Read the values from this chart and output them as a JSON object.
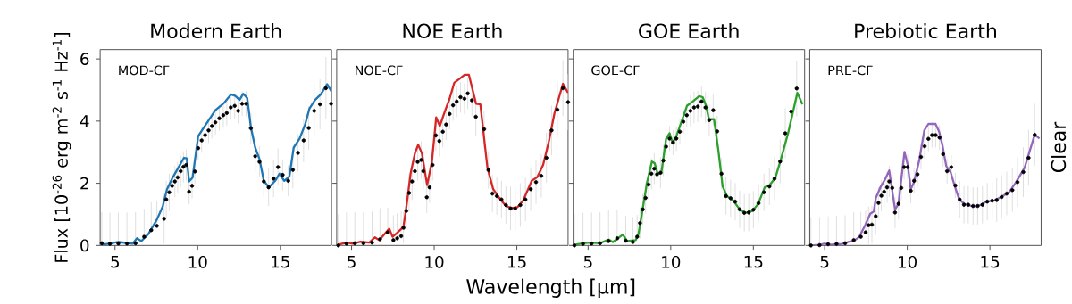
{
  "chart_data": [
    {
      "type": "line",
      "title": "Modern Earth",
      "ylabel": "Flux [10$^{-26}$ erg m$^{-2}$ s$^{-1}$ Hz$^{-1}$]",
      "annotations": [
        "MOD-CF"
      ],
      "xlim": [
        4.1,
        18.1
      ],
      "ylim": [
        0,
        6.3
      ],
      "xticks": [
        5,
        10,
        15
      ],
      "yticks": [
        0,
        2,
        4,
        6
      ],
      "series": [
        {
          "type": "scatter",
          "color": "#000000",
          "x": [
            4.2,
            4.69,
            5.2,
            5.72,
            6.24,
            6.76,
            7.19,
            7.53,
            7.97,
            8.1,
            8.28,
            8.45,
            8.62,
            8.79,
            8.97,
            9.14,
            9.31,
            9.48,
            9.66,
            9.83,
            10.03,
            10.24,
            10.45,
            10.66,
            10.86,
            11.07,
            11.31,
            11.55,
            11.76,
            12.0,
            12.24,
            12.45,
            12.69,
            12.93,
            13.22,
            13.48,
            13.74,
            14.0,
            14.29,
            14.59,
            14.86,
            15.14,
            15.48,
            15.76,
            16.07,
            16.41,
            16.72,
            17.05,
            17.4,
            17.76,
            18.07
          ],
          "values": [
            0.07,
            0.05,
            0.06,
            0.06,
            0.07,
            0.28,
            0.49,
            0.63,
            0.86,
            1.48,
            1.71,
            1.92,
            2.06,
            2.19,
            2.39,
            2.53,
            2.59,
            1.73,
            1.92,
            2.38,
            3.13,
            3.38,
            3.55,
            3.7,
            3.84,
            3.96,
            4.09,
            4.19,
            4.26,
            4.44,
            4.49,
            4.33,
            4.56,
            4.56,
            3.77,
            2.87,
            2.69,
            2.06,
            1.87,
            2.15,
            2.52,
            2.27,
            2.08,
            2.43,
            2.98,
            3.38,
            3.78,
            4.33,
            4.54,
            5.06,
            4.56
          ],
          "errors": [
            [
              0.07,
              1.07
            ],
            [
              0.05,
              1.05
            ],
            [
              0.06,
              1.06
            ],
            [
              0.06,
              1.06
            ],
            [
              0.07,
              1.07
            ],
            [
              0.28,
              1.18
            ],
            [
              0.49,
              1.39
            ],
            [
              0.63,
              1.43
            ],
            0.8,
            0.6,
            0.6,
            0.5,
            0.5,
            0.5,
            0.5,
            0.5,
            0.5,
            0.4,
            0.4,
            0.4,
            0.4,
            0.4,
            0.4,
            0.4,
            0.4,
            0.4,
            0.4,
            0.4,
            0.4,
            0.4,
            0.4,
            0.4,
            0.4,
            0.4,
            0.5,
            0.5,
            0.5,
            0.5,
            0.6,
            0.6,
            0.6,
            0.5,
            0.5,
            0.6,
            0.6,
            0.7,
            0.7,
            0.8,
            0.8,
            1.0,
            1.0
          ]
        },
        {
          "color": "#1f77b4",
          "x": [
            4.17,
            4.69,
            5.2,
            6.07,
            6.33,
            6.59,
            7.02,
            7.53,
            7.88,
            8.14,
            8.48,
            8.83,
            9.17,
            9.34,
            9.48,
            9.69,
            10.03,
            10.38,
            10.72,
            11.07,
            11.59,
            12.02,
            12.28,
            12.53,
            12.76,
            13.0,
            13.22,
            13.48,
            13.74,
            14.0,
            14.31,
            14.69,
            14.95,
            15.24,
            15.55,
            15.81,
            16.16,
            16.5,
            16.76,
            17.1,
            17.45,
            17.83,
            18.1
          ],
          "values": [
            0.02,
            0.06,
            0.11,
            0.06,
            0.23,
            0.14,
            0.37,
            0.83,
            1.25,
            1.8,
            2.18,
            2.5,
            2.82,
            2.8,
            2.06,
            2.18,
            3.52,
            3.8,
            4.07,
            4.35,
            4.58,
            4.86,
            4.81,
            4.68,
            4.88,
            4.74,
            3.8,
            3.15,
            2.78,
            2.08,
            1.87,
            2.08,
            2.31,
            2.08,
            2.22,
            3.15,
            3.43,
            3.89,
            4.4,
            4.68,
            4.86,
            5.19,
            4.95
          ]
        }
      ]
    },
    {
      "type": "line",
      "title": "NOE Earth",
      "xlabel": "Wavelength [μm]",
      "annotations": [
        "NOE-CF"
      ],
      "tick_labels": "x",
      "xlim": [
        4.1,
        18.1
      ],
      "ylim": [
        0,
        6.3
      ],
      "xticks": [
        5,
        10,
        15
      ],
      "yticks": [
        0,
        2,
        4,
        6
      ],
      "series": [
        {
          "type": "scatter",
          "color": "#000000",
          "x": [
            4.2,
            4.69,
            5.2,
            5.72,
            6.24,
            6.72,
            7.19,
            7.53,
            7.76,
            8.0,
            8.14,
            8.31,
            8.48,
            8.66,
            8.83,
            9.0,
            9.21,
            9.34,
            9.55,
            9.72,
            9.9,
            10.1,
            10.31,
            10.52,
            10.72,
            10.93,
            11.14,
            11.36,
            11.59,
            11.83,
            12.03,
            12.28,
            12.52,
            13.02,
            13.28,
            13.52,
            13.79,
            14.07,
            14.34,
            14.62,
            14.9,
            15.21,
            15.52,
            15.84,
            16.16,
            16.48,
            16.79,
            17.1,
            17.45,
            17.79,
            18.1
          ],
          "values": [
            0.0,
            0.06,
            0.07,
            0.07,
            0.09,
            0.2,
            0.42,
            0.17,
            0.23,
            0.3,
            0.57,
            1.11,
            1.69,
            2.06,
            2.39,
            2.69,
            2.75,
            2.39,
            1.55,
            1.87,
            2.59,
            3.54,
            3.36,
            3.66,
            3.89,
            4.23,
            4.51,
            4.63,
            4.77,
            4.72,
            4.89,
            4.67,
            4.14,
            3.74,
            2.43,
            1.67,
            1.59,
            1.48,
            1.3,
            1.19,
            1.19,
            1.3,
            1.48,
            1.81,
            2.04,
            2.24,
            2.82,
            3.7,
            4.37,
            5.06,
            4.61
          ],
          "errors": [
            [
              0.0,
              1.0
            ],
            [
              0.06,
              1.06
            ],
            [
              0.07,
              1.07
            ],
            [
              0.07,
              1.07
            ],
            [
              0.09,
              1.09
            ],
            [
              0.2,
              1.2
            ],
            [
              0.42,
              1.22
            ],
            [
              0.17,
              0.97
            ],
            [
              0.23,
              1.03
            ],
            [
              0.3,
              1.1
            ],
            0.5,
            0.6,
            0.6,
            0.6,
            0.6,
            0.6,
            0.6,
            0.6,
            0.5,
            0.5,
            0.5,
            0.5,
            0.5,
            0.5,
            0.5,
            0.5,
            0.5,
            0.5,
            0.5,
            0.5,
            0.5,
            0.5,
            0.6,
            0.6,
            0.6,
            0.6,
            0.6,
            0.6,
            0.6,
            0.7,
            0.7,
            0.7,
            0.7,
            0.7,
            0.7,
            0.7,
            0.8,
            0.8,
            0.9,
            0.9,
            0.9
          ]
        },
        {
          "color": "#d62728",
          "x": [
            4.17,
            4.69,
            5.12,
            5.55,
            6.07,
            6.41,
            6.67,
            7.28,
            7.48,
            7.79,
            8.14,
            8.34,
            8.57,
            8.83,
            9.03,
            9.26,
            9.57,
            9.86,
            10.12,
            10.34,
            10.64,
            10.93,
            11.21,
            11.5,
            11.84,
            12.1,
            12.53,
            12.79,
            13.22,
            13.57,
            14.0,
            14.34,
            14.69,
            15.03,
            15.38,
            15.9,
            16.24,
            16.59,
            16.93,
            17.28,
            17.79,
            18.1
          ],
          "values": [
            0.02,
            0.09,
            0.06,
            0.12,
            0.09,
            0.26,
            0.17,
            0.54,
            0.28,
            0.42,
            0.6,
            1.34,
            2.31,
            2.96,
            3.24,
            2.96,
            1.94,
            2.69,
            4.12,
            3.84,
            4.31,
            4.72,
            5.23,
            5.35,
            5.49,
            5.49,
            4.56,
            4.54,
            2.5,
            1.81,
            1.48,
            1.27,
            1.2,
            1.23,
            1.44,
            2.08,
            2.2,
            2.59,
            3.33,
            4.26,
            5.2,
            4.91
          ]
        }
      ]
    },
    {
      "type": "line",
      "title": "GOE Earth",
      "annotations": [
        "GOE-CF"
      ],
      "tick_labels": "x",
      "xlim": [
        4.1,
        18.1
      ],
      "ylim": [
        0,
        6.3
      ],
      "xticks": [
        5,
        10,
        15
      ],
      "yticks": [
        0,
        2,
        4,
        6
      ],
      "series": [
        {
          "type": "scatter",
          "color": "#000000",
          "x": [
            4.17,
            4.69,
            5.21,
            5.72,
            6.24,
            6.76,
            7.28,
            7.71,
            7.97,
            8.14,
            8.31,
            8.48,
            8.66,
            8.83,
            9.0,
            9.17,
            9.38,
            9.55,
            9.72,
            9.93,
            10.14,
            10.34,
            10.55,
            10.76,
            10.97,
            11.19,
            11.41,
            11.64,
            11.86,
            12.1,
            12.33,
            12.57,
            12.81,
            13.07,
            13.34,
            13.62,
            13.9,
            14.17,
            14.45,
            14.72,
            15.0,
            15.31,
            15.64,
            15.97,
            16.28,
            16.62,
            16.93,
            17.28,
            17.62
          ],
          "values": [
            0.0,
            0.05,
            0.06,
            0.07,
            0.14,
            0.23,
            0.15,
            0.11,
            0.28,
            0.72,
            1.16,
            1.53,
            1.96,
            2.31,
            2.47,
            2.29,
            2.34,
            2.73,
            3.18,
            3.44,
            3.31,
            3.44,
            3.66,
            3.98,
            4.19,
            4.33,
            4.44,
            4.47,
            4.63,
            4.44,
            4.03,
            4.35,
            3.67,
            2.31,
            1.59,
            1.52,
            1.41,
            1.16,
            1.05,
            1.06,
            1.15,
            1.36,
            1.71,
            1.9,
            2.15,
            2.7,
            3.61,
            4.31,
            5.05
          ],
          "errors": [
            [
              0.0,
              1.0
            ],
            [
              0.05,
              1.05
            ],
            [
              0.06,
              1.06
            ],
            [
              0.07,
              1.07
            ],
            [
              0.14,
              1.14
            ],
            [
              0.23,
              1.13
            ],
            [
              0.15,
              0.95
            ],
            [
              0.11,
              0.91
            ],
            [
              0.28,
              0.98
            ],
            0.5,
            0.5,
            0.5,
            0.5,
            0.5,
            0.5,
            0.5,
            0.5,
            0.5,
            0.4,
            0.4,
            0.4,
            0.4,
            0.4,
            0.4,
            0.4,
            0.5,
            0.5,
            0.5,
            0.5,
            0.5,
            0.5,
            0.5,
            0.5,
            0.5,
            0.6,
            0.6,
            0.6,
            0.6,
            0.6,
            0.6,
            0.6,
            0.6,
            0.6,
            0.6,
            0.7,
            0.7,
            0.8,
            0.8,
            0.9
          ]
        },
        {
          "color": "#2ca02c",
          "x": [
            4.17,
            4.69,
            5.12,
            5.72,
            6.24,
            6.5,
            7.1,
            7.36,
            7.88,
            8.05,
            8.31,
            8.57,
            8.86,
            9.03,
            9.21,
            9.43,
            9.72,
            9.93,
            10.12,
            10.34,
            10.59,
            10.98,
            11.33,
            11.72,
            11.93,
            12.14,
            12.31,
            12.62,
            12.88,
            13.14,
            13.4,
            13.79,
            14.17,
            14.52,
            14.95,
            15.29,
            15.69,
            15.98,
            16.33,
            16.67,
            17.1,
            17.66,
            17.97
          ],
          "values": [
            0.02,
            0.07,
            0.09,
            0.07,
            0.19,
            0.11,
            0.35,
            0.14,
            0.17,
            0.37,
            1.2,
            2.04,
            2.7,
            2.64,
            2.31,
            2.33,
            3.43,
            3.61,
            3.29,
            3.52,
            3.89,
            4.49,
            4.63,
            4.8,
            4.77,
            4.49,
            4.06,
            4.06,
            3.06,
            1.9,
            1.59,
            1.44,
            1.16,
            1.05,
            1.11,
            1.34,
            1.87,
            1.94,
            2.18,
            2.78,
            3.61,
            4.91,
            4.54
          ]
        }
      ]
    },
    {
      "type": "line",
      "title": "Prebiotic Earth",
      "annotations": [
        "PRE-CF"
      ],
      "y2label": "Clear",
      "tick_labels": "x",
      "xlim": [
        4.1,
        18.1
      ],
      "ylim": [
        0,
        6.3
      ],
      "xticks": [
        5,
        10,
        15
      ],
      "yticks": [
        0,
        2,
        4,
        6
      ],
      "series": [
        {
          "type": "scatter",
          "color": "#000000",
          "x": [
            4.17,
            4.69,
            5.21,
            5.72,
            6.24,
            6.76,
            7.19,
            7.48,
            7.66,
            7.86,
            8.09,
            8.26,
            8.43,
            8.6,
            8.78,
            8.91,
            9.09,
            9.26,
            9.47,
            9.64,
            9.81,
            10.02,
            10.21,
            10.41,
            10.62,
            10.83,
            11.05,
            11.28,
            11.5,
            11.72,
            11.95,
            12.17,
            12.41,
            12.66,
            12.91,
            13.17,
            13.43,
            13.69,
            13.98,
            14.26,
            14.55,
            14.84,
            15.14,
            15.41,
            15.71,
            16.02,
            16.36,
            16.67,
            17.02,
            17.34,
            17.71
          ],
          "values": [
            0.0,
            0.01,
            0.04,
            0.05,
            0.07,
            0.17,
            0.28,
            0.42,
            0.65,
            0.67,
            0.94,
            1.37,
            1.6,
            1.73,
            1.87,
            2.06,
            1.85,
            1.06,
            1.34,
            1.85,
            2.52,
            2.52,
            1.76,
            2.08,
            2.29,
            2.85,
            3.19,
            3.43,
            3.55,
            3.55,
            3.47,
            2.94,
            2.39,
            2.52,
            1.93,
            1.48,
            1.31,
            1.31,
            1.27,
            1.27,
            1.31,
            1.41,
            1.44,
            1.46,
            1.56,
            1.67,
            1.78,
            2.04,
            2.36,
            2.82,
            3.56
          ],
          "errors": [
            [
              0.0,
              0.9
            ],
            [
              0.01,
              0.91
            ],
            [
              0.04,
              0.94
            ],
            [
              0.05,
              0.95
            ],
            [
              0.07,
              0.97
            ],
            [
              0.17,
              1.07
            ],
            [
              0.28,
              1.08
            ],
            [
              0.42,
              1.12
            ],
            0.6,
            0.6,
            0.6,
            0.5,
            0.5,
            0.5,
            0.5,
            0.5,
            0.5,
            0.5,
            0.5,
            0.4,
            0.4,
            0.4,
            0.4,
            0.4,
            0.4,
            0.4,
            0.4,
            0.4,
            0.4,
            0.4,
            0.4,
            0.4,
            0.4,
            0.4,
            0.4,
            0.6,
            0.6,
            0.6,
            0.6,
            0.6,
            0.6,
            0.6,
            0.6,
            0.7,
            0.7,
            0.7,
            0.7,
            0.8,
            0.8,
            0.9,
            1.0
          ]
        },
        {
          "color": "#9467bd",
          "x": [
            4.1,
            4.69,
            5.03,
            5.21,
            6.07,
            6.41,
            6.76,
            7.1,
            7.45,
            7.76,
            7.97,
            8.1,
            8.4,
            8.66,
            8.91,
            9.26,
            9.47,
            9.83,
            10.03,
            10.21,
            10.41,
            10.72,
            11.03,
            11.28,
            11.71,
            11.93,
            12.14,
            12.36,
            12.62,
            12.88,
            13.14,
            13.45,
            14.0,
            14.43,
            14.78,
            15.29,
            15.72,
            16.16,
            16.59,
            17.1,
            17.71,
            18.0
          ],
          "values": [
            0.0,
            0.02,
            0.06,
            0.02,
            0.05,
            0.11,
            0.14,
            0.28,
            0.65,
            1.02,
            1.09,
            1.53,
            1.9,
            2.13,
            2.41,
            1.16,
            1.34,
            3.01,
            2.59,
            1.81,
            2.04,
            2.73,
            3.7,
            3.91,
            3.91,
            3.66,
            3.19,
            2.55,
            2.36,
            1.9,
            1.48,
            1.34,
            1.25,
            1.3,
            1.41,
            1.45,
            1.57,
            1.71,
            2.04,
            2.5,
            3.56,
            3.44
          ]
        }
      ]
    }
  ]
}
